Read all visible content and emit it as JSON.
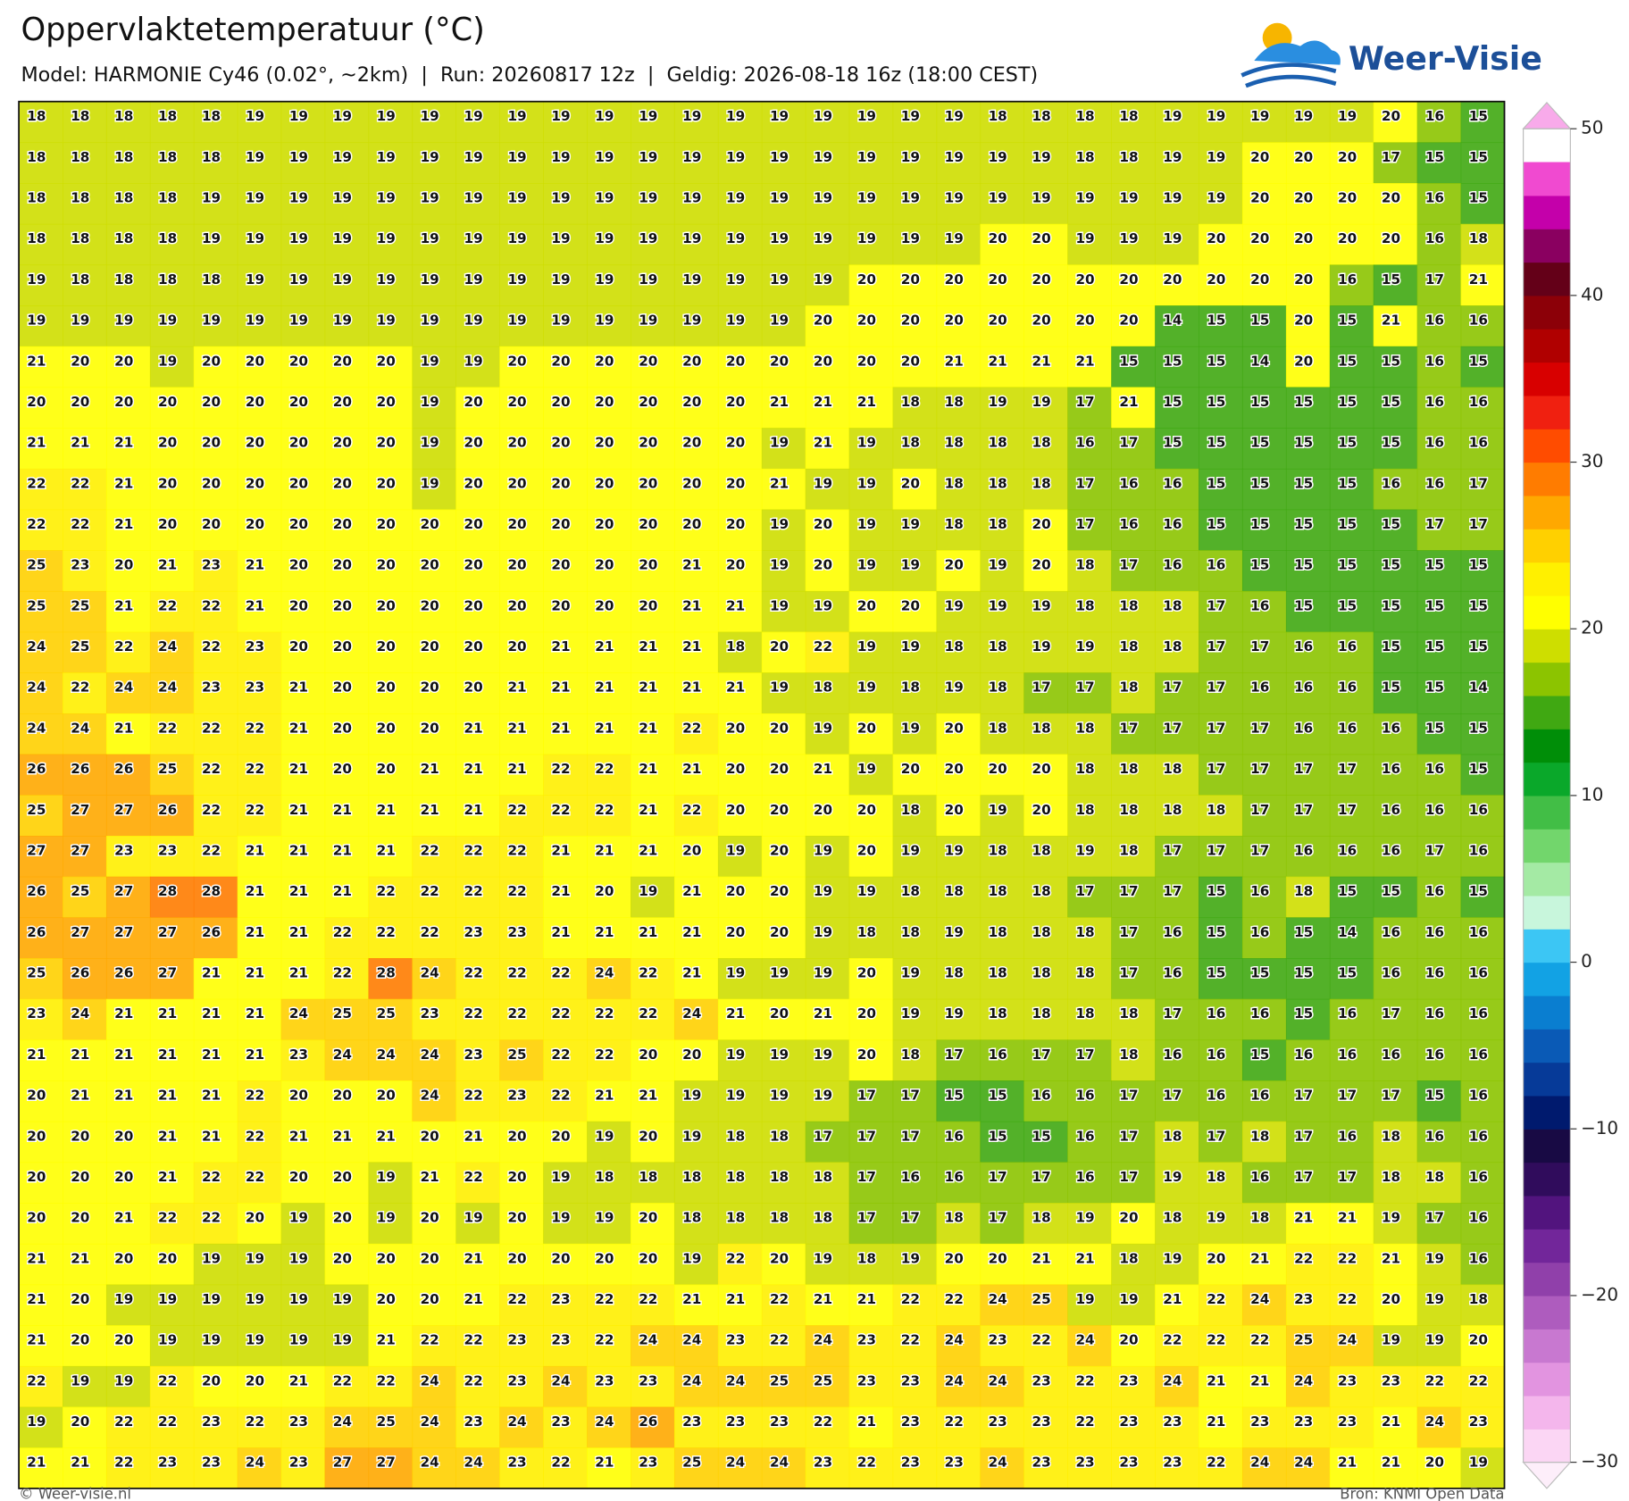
{
  "header": {
    "title": "Oppervlaktetemperatuur (°C)",
    "subtitle": "Model: HARMONIE Cy46 (0.02°, ~2km)  |  Run: 20260817 12z  |  Geldig: 2026-08-18 16z (18:00 CEST)",
    "logo": "Weer-Visie"
  },
  "map": {
    "rows": [
      [
        18,
        18,
        18,
        18,
        18,
        19,
        19,
        19,
        19,
        19,
        19,
        19,
        19,
        19,
        19,
        19,
        19,
        19,
        19,
        19,
        19,
        19,
        18,
        18,
        18,
        18,
        19,
        19,
        19,
        19,
        19,
        20,
        16,
        15
      ],
      [
        18,
        18,
        18,
        18,
        18,
        19,
        19,
        19,
        19,
        19,
        19,
        19,
        19,
        19,
        19,
        19,
        19,
        19,
        19,
        19,
        19,
        19,
        19,
        19,
        18,
        18,
        19,
        19,
        20,
        20,
        20,
        17,
        15,
        15
      ],
      [
        18,
        18,
        18,
        18,
        19,
        19,
        19,
        19,
        19,
        19,
        19,
        19,
        19,
        19,
        19,
        19,
        19,
        19,
        19,
        19,
        19,
        19,
        19,
        19,
        19,
        19,
        19,
        19,
        20,
        20,
        20,
        20,
        16,
        15
      ],
      [
        18,
        18,
        18,
        18,
        19,
        19,
        19,
        19,
        19,
        19,
        19,
        19,
        19,
        19,
        19,
        19,
        19,
        19,
        19,
        19,
        19,
        19,
        20,
        20,
        19,
        19,
        19,
        20,
        20,
        20,
        20,
        20,
        16,
        18
      ],
      [
        19,
        18,
        18,
        18,
        18,
        19,
        19,
        19,
        19,
        19,
        19,
        19,
        19,
        19,
        19,
        19,
        19,
        19,
        19,
        20,
        20,
        20,
        20,
        20,
        20,
        20,
        20,
        20,
        20,
        20,
        16,
        15,
        17,
        21
      ],
      [
        19,
        19,
        19,
        19,
        19,
        19,
        19,
        19,
        19,
        19,
        19,
        19,
        19,
        19,
        19,
        19,
        19,
        19,
        20,
        20,
        20,
        20,
        20,
        20,
        20,
        20,
        14,
        15,
        15,
        20,
        15,
        21,
        16,
        16
      ],
      [
        21,
        20,
        20,
        19,
        20,
        20,
        20,
        20,
        20,
        19,
        19,
        20,
        20,
        20,
        20,
        20,
        20,
        20,
        20,
        20,
        20,
        21,
        21,
        21,
        21,
        15,
        15,
        15,
        14,
        20,
        15,
        15,
        16,
        15
      ],
      [
        20,
        20,
        20,
        20,
        20,
        20,
        20,
        20,
        20,
        19,
        20,
        20,
        20,
        20,
        20,
        20,
        20,
        21,
        21,
        21,
        18,
        18,
        19,
        19,
        17,
        21,
        15,
        15,
        15,
        15,
        15,
        15,
        16,
        16
      ],
      [
        21,
        21,
        21,
        20,
        20,
        20,
        20,
        20,
        20,
        19,
        20,
        20,
        20,
        20,
        20,
        20,
        20,
        19,
        21,
        19,
        18,
        18,
        18,
        18,
        16,
        17,
        15,
        15,
        15,
        15,
        15,
        15,
        16,
        16
      ],
      [
        22,
        22,
        21,
        20,
        20,
        20,
        20,
        20,
        20,
        19,
        20,
        20,
        20,
        20,
        20,
        20,
        20,
        21,
        19,
        19,
        20,
        18,
        18,
        18,
        17,
        16,
        16,
        15,
        15,
        15,
        15,
        16,
        16,
        17
      ],
      [
        22,
        22,
        21,
        20,
        20,
        20,
        20,
        20,
        20,
        20,
        20,
        20,
        20,
        20,
        20,
        20,
        20,
        19,
        20,
        19,
        19,
        18,
        18,
        20,
        17,
        16,
        16,
        15,
        15,
        15,
        15,
        15,
        17,
        17
      ],
      [
        25,
        23,
        20,
        21,
        23,
        21,
        20,
        20,
        20,
        20,
        20,
        20,
        20,
        20,
        20,
        21,
        20,
        19,
        20,
        19,
        19,
        20,
        19,
        20,
        18,
        17,
        16,
        16,
        15,
        15,
        15,
        15,
        15,
        15
      ],
      [
        25,
        25,
        21,
        22,
        22,
        21,
        20,
        20,
        20,
        20,
        20,
        20,
        20,
        20,
        20,
        21,
        21,
        19,
        19,
        20,
        20,
        19,
        19,
        19,
        18,
        18,
        18,
        17,
        16,
        15,
        15,
        15,
        15,
        15
      ],
      [
        24,
        25,
        22,
        24,
        22,
        23,
        20,
        20,
        20,
        20,
        20,
        20,
        21,
        21,
        21,
        21,
        18,
        20,
        22,
        19,
        19,
        18,
        18,
        19,
        19,
        18,
        18,
        17,
        17,
        16,
        16,
        15,
        15,
        15
      ],
      [
        24,
        22,
        24,
        24,
        23,
        23,
        21,
        20,
        20,
        20,
        20,
        21,
        21,
        21,
        21,
        21,
        21,
        19,
        18,
        19,
        18,
        19,
        18,
        17,
        17,
        18,
        17,
        17,
        16,
        16,
        16,
        15,
        15,
        14
      ],
      [
        24,
        24,
        21,
        22,
        22,
        22,
        21,
        20,
        20,
        20,
        21,
        21,
        21,
        21,
        21,
        22,
        20,
        20,
        19,
        20,
        19,
        20,
        18,
        18,
        18,
        17,
        17,
        17,
        17,
        16,
        16,
        16,
        15,
        15
      ],
      [
        26,
        26,
        26,
        25,
        22,
        22,
        21,
        20,
        20,
        21,
        21,
        21,
        22,
        22,
        21,
        21,
        20,
        20,
        21,
        19,
        20,
        20,
        20,
        20,
        18,
        18,
        18,
        17,
        17,
        17,
        17,
        16,
        16,
        15
      ],
      [
        25,
        27,
        27,
        26,
        22,
        22,
        21,
        21,
        21,
        21,
        21,
        22,
        22,
        22,
        21,
        22,
        20,
        20,
        20,
        20,
        18,
        20,
        19,
        20,
        18,
        18,
        18,
        18,
        17,
        17,
        17,
        16,
        16,
        16
      ],
      [
        27,
        27,
        23,
        23,
        22,
        21,
        21,
        21,
        21,
        22,
        22,
        22,
        21,
        21,
        21,
        20,
        19,
        20,
        19,
        20,
        19,
        19,
        18,
        18,
        19,
        18,
        17,
        17,
        17,
        16,
        16,
        16,
        17,
        16
      ],
      [
        26,
        25,
        27,
        28,
        28,
        21,
        21,
        21,
        22,
        22,
        22,
        22,
        21,
        20,
        19,
        21,
        20,
        20,
        19,
        19,
        18,
        18,
        18,
        18,
        17,
        17,
        17,
        15,
        16,
        18,
        15,
        15,
        16,
        15
      ],
      [
        26,
        27,
        27,
        27,
        26,
        21,
        21,
        22,
        22,
        22,
        23,
        23,
        21,
        21,
        21,
        21,
        20,
        20,
        19,
        18,
        18,
        19,
        18,
        18,
        18,
        17,
        16,
        15,
        16,
        15,
        14,
        16,
        16,
        16
      ],
      [
        25,
        26,
        26,
        27,
        21,
        21,
        21,
        22,
        28,
        24,
        22,
        22,
        22,
        24,
        22,
        21,
        19,
        19,
        19,
        20,
        19,
        18,
        18,
        18,
        18,
        17,
        16,
        15,
        15,
        15,
        15,
        16,
        16,
        16
      ],
      [
        23,
        24,
        21,
        21,
        21,
        21,
        24,
        25,
        25,
        23,
        22,
        22,
        22,
        22,
        22,
        24,
        21,
        20,
        21,
        20,
        19,
        19,
        18,
        18,
        18,
        18,
        17,
        16,
        16,
        15,
        16,
        17,
        16,
        16
      ],
      [
        21,
        21,
        21,
        21,
        21,
        21,
        23,
        24,
        24,
        24,
        23,
        25,
        22,
        22,
        20,
        20,
        19,
        19,
        19,
        20,
        18,
        17,
        16,
        17,
        17,
        18,
        16,
        16,
        15,
        16,
        16,
        16,
        16,
        16
      ],
      [
        20,
        21,
        21,
        21,
        21,
        22,
        20,
        20,
        20,
        24,
        22,
        23,
        22,
        21,
        21,
        19,
        19,
        19,
        19,
        17,
        17,
        15,
        15,
        16,
        16,
        17,
        17,
        16,
        16,
        17,
        17,
        17,
        15,
        16
      ],
      [
        20,
        20,
        20,
        21,
        21,
        22,
        21,
        21,
        21,
        20,
        21,
        20,
        20,
        19,
        20,
        19,
        18,
        18,
        17,
        17,
        17,
        16,
        15,
        15,
        16,
        17,
        18,
        17,
        18,
        17,
        16,
        18,
        16,
        16
      ],
      [
        20,
        20,
        20,
        21,
        22,
        22,
        20,
        20,
        19,
        21,
        22,
        20,
        19,
        18,
        18,
        18,
        18,
        18,
        18,
        17,
        16,
        16,
        17,
        17,
        16,
        17,
        19,
        18,
        16,
        17,
        17,
        18,
        18,
        16
      ],
      [
        20,
        20,
        21,
        22,
        22,
        20,
        19,
        20,
        19,
        20,
        19,
        20,
        19,
        19,
        20,
        18,
        18,
        18,
        18,
        17,
        17,
        18,
        17,
        18,
        19,
        20,
        18,
        19,
        18,
        21,
        21,
        19,
        17,
        16
      ],
      [
        21,
        21,
        20,
        20,
        19,
        19,
        19,
        20,
        20,
        20,
        21,
        20,
        20,
        20,
        20,
        19,
        22,
        20,
        19,
        18,
        19,
        20,
        20,
        21,
        21,
        18,
        19,
        20,
        21,
        22,
        22,
        21,
        19,
        16
      ],
      [
        21,
        20,
        19,
        19,
        19,
        19,
        19,
        19,
        20,
        20,
        21,
        22,
        23,
        22,
        22,
        21,
        21,
        22,
        21,
        21,
        22,
        22,
        24,
        25,
        19,
        19,
        21,
        22,
        24,
        23,
        22,
        20,
        19,
        18
      ],
      [
        21,
        20,
        20,
        19,
        19,
        19,
        19,
        19,
        21,
        22,
        22,
        23,
        23,
        22,
        24,
        24,
        23,
        22,
        24,
        23,
        22,
        24,
        23,
        22,
        24,
        20,
        22,
        22,
        22,
        25,
        24,
        19,
        19,
        20
      ],
      [
        22,
        19,
        19,
        22,
        20,
        20,
        21,
        22,
        22,
        24,
        22,
        23,
        24,
        23,
        23,
        24,
        24,
        25,
        25,
        23,
        23,
        24,
        24,
        23,
        22,
        23,
        24,
        21,
        21,
        24,
        23,
        23,
        22,
        22
      ],
      [
        19,
        20,
        22,
        22,
        23,
        22,
        23,
        24,
        25,
        24,
        23,
        24,
        23,
        24,
        26,
        23,
        23,
        23,
        22,
        21,
        23,
        22,
        23,
        23,
        22,
        23,
        23,
        21,
        23,
        23,
        23,
        21,
        24,
        23
      ],
      [
        21,
        21,
        22,
        23,
        23,
        24,
        23,
        27,
        27,
        24,
        24,
        23,
        22,
        21,
        23,
        25,
        24,
        24,
        23,
        22,
        23,
        23,
        24,
        23,
        23,
        23,
        23,
        22,
        24,
        24,
        21,
        21,
        20,
        19
      ]
    ],
    "colorbar": {
      "lim": [
        -30,
        50
      ],
      "ticks": [
        50,
        40,
        30,
        20,
        10,
        0,
        {
          "value": -10,
          "label": "−10"
        },
        {
          "value": -20,
          "label": "−20"
        },
        {
          "value": -30,
          "label": "−30"
        }
      ],
      "colors": [
        "#fdeefa",
        "#fbd6f4",
        "#f4b6ec",
        "#e294e0",
        "#c878d0",
        "#ae5cbe",
        "#9040aa",
        "#72269a",
        "#52147e",
        "#300c5c",
        "#180a44",
        "#001a6e",
        "#063a98",
        "#0a5ab6",
        "#0a7ed0",
        "#12a2e4",
        "#3cc6f4",
        "#c8f6dc",
        "#a4eaa4",
        "#72d66c",
        "#42be46",
        "#0aa82a",
        "#008e08",
        "#40a812",
        "#8cc400",
        "#cede00",
        "#ffff00",
        "#fff000",
        "#ffd000",
        "#ffa800",
        "#ff7c00",
        "#ff4c00",
        "#f02010",
        "#d80000",
        "#b00000",
        "#8c0008",
        "#640018",
        "#8a0060",
        "#c400aa",
        "#f04ad0",
        "#f8aaea"
      ]
    }
  },
  "footer": {
    "left": "© Weer-visie.nl",
    "right": "Bron: KNMI Open Data"
  }
}
